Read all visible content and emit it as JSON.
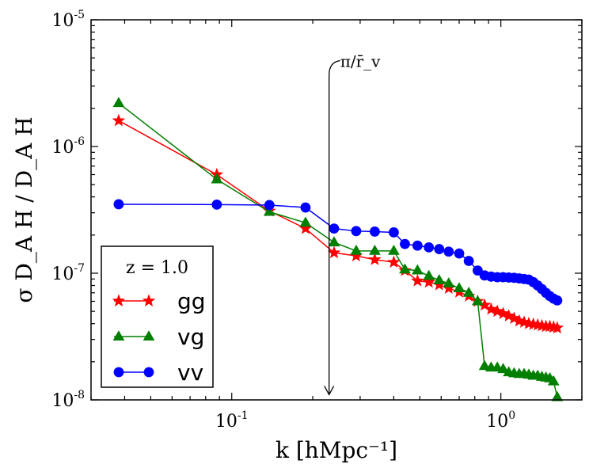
{
  "chart_data": {
    "type": "line",
    "xscale": "log",
    "yscale": "log",
    "xlim": [
      0.03,
      2.0
    ],
    "ylim": [
      1e-08,
      1e-05
    ],
    "xlabel": "k  [hMpc⁻¹]",
    "ylabel": "σ D_A H / D_A H",
    "xticks": [
      {
        "value": 0.1,
        "base": "10",
        "exp": "-1"
      },
      {
        "value": 1.0,
        "base": "10",
        "exp": "0"
      }
    ],
    "yticks": [
      {
        "value": 1e-08,
        "base": "10",
        "exp": "-8"
      },
      {
        "value": 1e-07,
        "base": "10",
        "exp": "-7"
      },
      {
        "value": 1e-06,
        "base": "10",
        "exp": "-6"
      },
      {
        "value": 1e-05,
        "base": "10",
        "exp": "-5"
      }
    ],
    "legend": {
      "title": "z = 1.0",
      "position": "lower-left"
    },
    "annotation": {
      "text": "π/r̄_v",
      "x": 0.23,
      "y_top": 4.5e-06,
      "y_bottom": 1.1e-08
    },
    "series": [
      {
        "name": "gg",
        "color": "#ff0000",
        "marker": "star",
        "x": [
          0.038,
          0.088,
          0.138,
          0.188,
          0.24,
          0.29,
          0.34,
          0.4,
          0.44,
          0.49,
          0.54,
          0.59,
          0.64,
          0.7,
          0.76,
          0.82,
          0.87,
          0.92,
          0.97,
          1.02,
          1.07,
          1.12,
          1.17,
          1.22,
          1.27,
          1.32,
          1.37,
          1.42,
          1.47,
          1.52,
          1.57,
          1.62
        ],
        "y": [
          1.6e-06,
          6e-07,
          3.1e-07,
          2.25e-07,
          1.45e-07,
          1.37e-07,
          1.28e-07,
          1.22e-07,
          1.05e-07,
          8.7e-08,
          8.5e-08,
          8.1e-08,
          7.6e-08,
          7.1e-08,
          6.6e-08,
          6e-08,
          5.6e-08,
          5.2e-08,
          5e-08,
          4.8e-08,
          4.6e-08,
          4.4e-08,
          4.2e-08,
          4.1e-08,
          4e-08,
          3.95e-08,
          3.9e-08,
          3.85e-08,
          3.8e-08,
          3.8e-08,
          3.75e-08,
          3.7e-08
        ]
      },
      {
        "name": "vg",
        "color": "#007f00",
        "marker": "triangle",
        "x": [
          0.038,
          0.088,
          0.138,
          0.188,
          0.24,
          0.29,
          0.34,
          0.4,
          0.44,
          0.49,
          0.54,
          0.59,
          0.64,
          0.7,
          0.76,
          0.82,
          0.87,
          0.92,
          0.97,
          1.02,
          1.07,
          1.12,
          1.17,
          1.22,
          1.27,
          1.32,
          1.37,
          1.42,
          1.47,
          1.52,
          1.57,
          1.62
        ],
        "y": [
          2.2e-06,
          5.5e-07,
          3.05e-07,
          2.5e-07,
          1.75e-07,
          1.5e-07,
          1.5e-07,
          1.5e-07,
          1.07e-07,
          1.05e-07,
          9.5e-08,
          8.8e-08,
          8.3e-08,
          7.6e-08,
          7e-08,
          6e-08,
          1.85e-08,
          1.8e-08,
          1.8e-08,
          1.75e-08,
          1.65e-08,
          1.62e-08,
          1.6e-08,
          1.6e-08,
          1.58e-08,
          1.55e-08,
          1.55e-08,
          1.52e-08,
          1.5e-08,
          1.48e-08,
          1.4e-08,
          1.05e-08
        ]
      },
      {
        "name": "vv",
        "color": "#0000ff",
        "marker": "circle",
        "x": [
          0.038,
          0.088,
          0.138,
          0.188,
          0.24,
          0.29,
          0.34,
          0.4,
          0.44,
          0.49,
          0.54,
          0.59,
          0.64,
          0.7,
          0.76,
          0.82,
          0.87,
          0.92,
          0.97,
          1.02,
          1.07,
          1.12,
          1.17,
          1.22,
          1.27,
          1.32,
          1.37,
          1.42,
          1.47,
          1.52,
          1.57,
          1.62
        ],
        "y": [
          3.5e-07,
          3.48e-07,
          3.45e-07,
          3.3e-07,
          2.25e-07,
          2.15e-07,
          2.13e-07,
          2.1e-07,
          1.7e-07,
          1.65e-07,
          1.6e-07,
          1.55e-07,
          1.48e-07,
          1.43e-07,
          1.25e-07,
          1.05e-07,
          9.6e-08,
          9.4e-08,
          9.3e-08,
          9.3e-08,
          9.25e-08,
          9.2e-08,
          9.1e-08,
          9e-08,
          8.9e-08,
          8.5e-08,
          8e-08,
          7.5e-08,
          7e-08,
          6.6e-08,
          6.3e-08,
          6.1e-08
        ]
      }
    ]
  }
}
